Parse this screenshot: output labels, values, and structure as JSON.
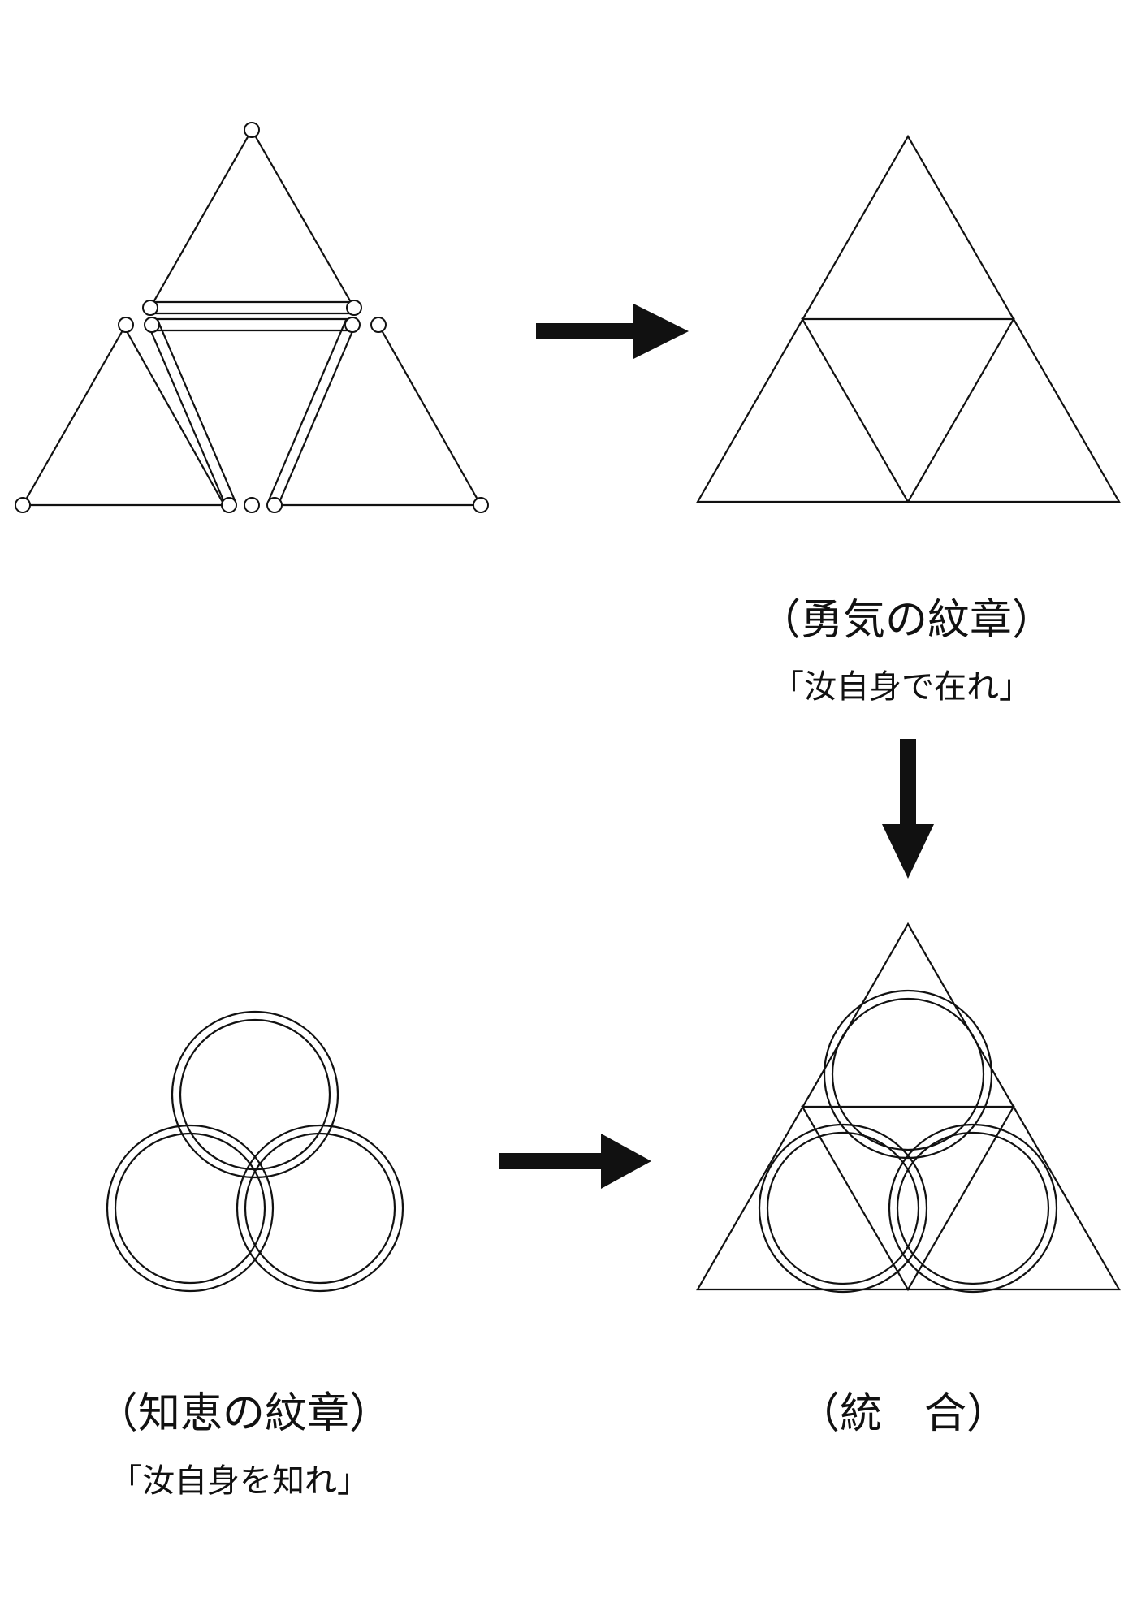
{
  "colors": {
    "ink": "#111111",
    "paper": "#ffffff"
  },
  "courage": {
    "title": "（勇気の紋章）",
    "motto": "「汝自身で在れ」"
  },
  "wisdom": {
    "title": "（知恵の紋章）",
    "motto": "「汝自身を知れ」"
  },
  "union": {
    "title": "（統　合）"
  },
  "arrows": [
    "right-arrow",
    "down-arrow",
    "right-arrow"
  ]
}
